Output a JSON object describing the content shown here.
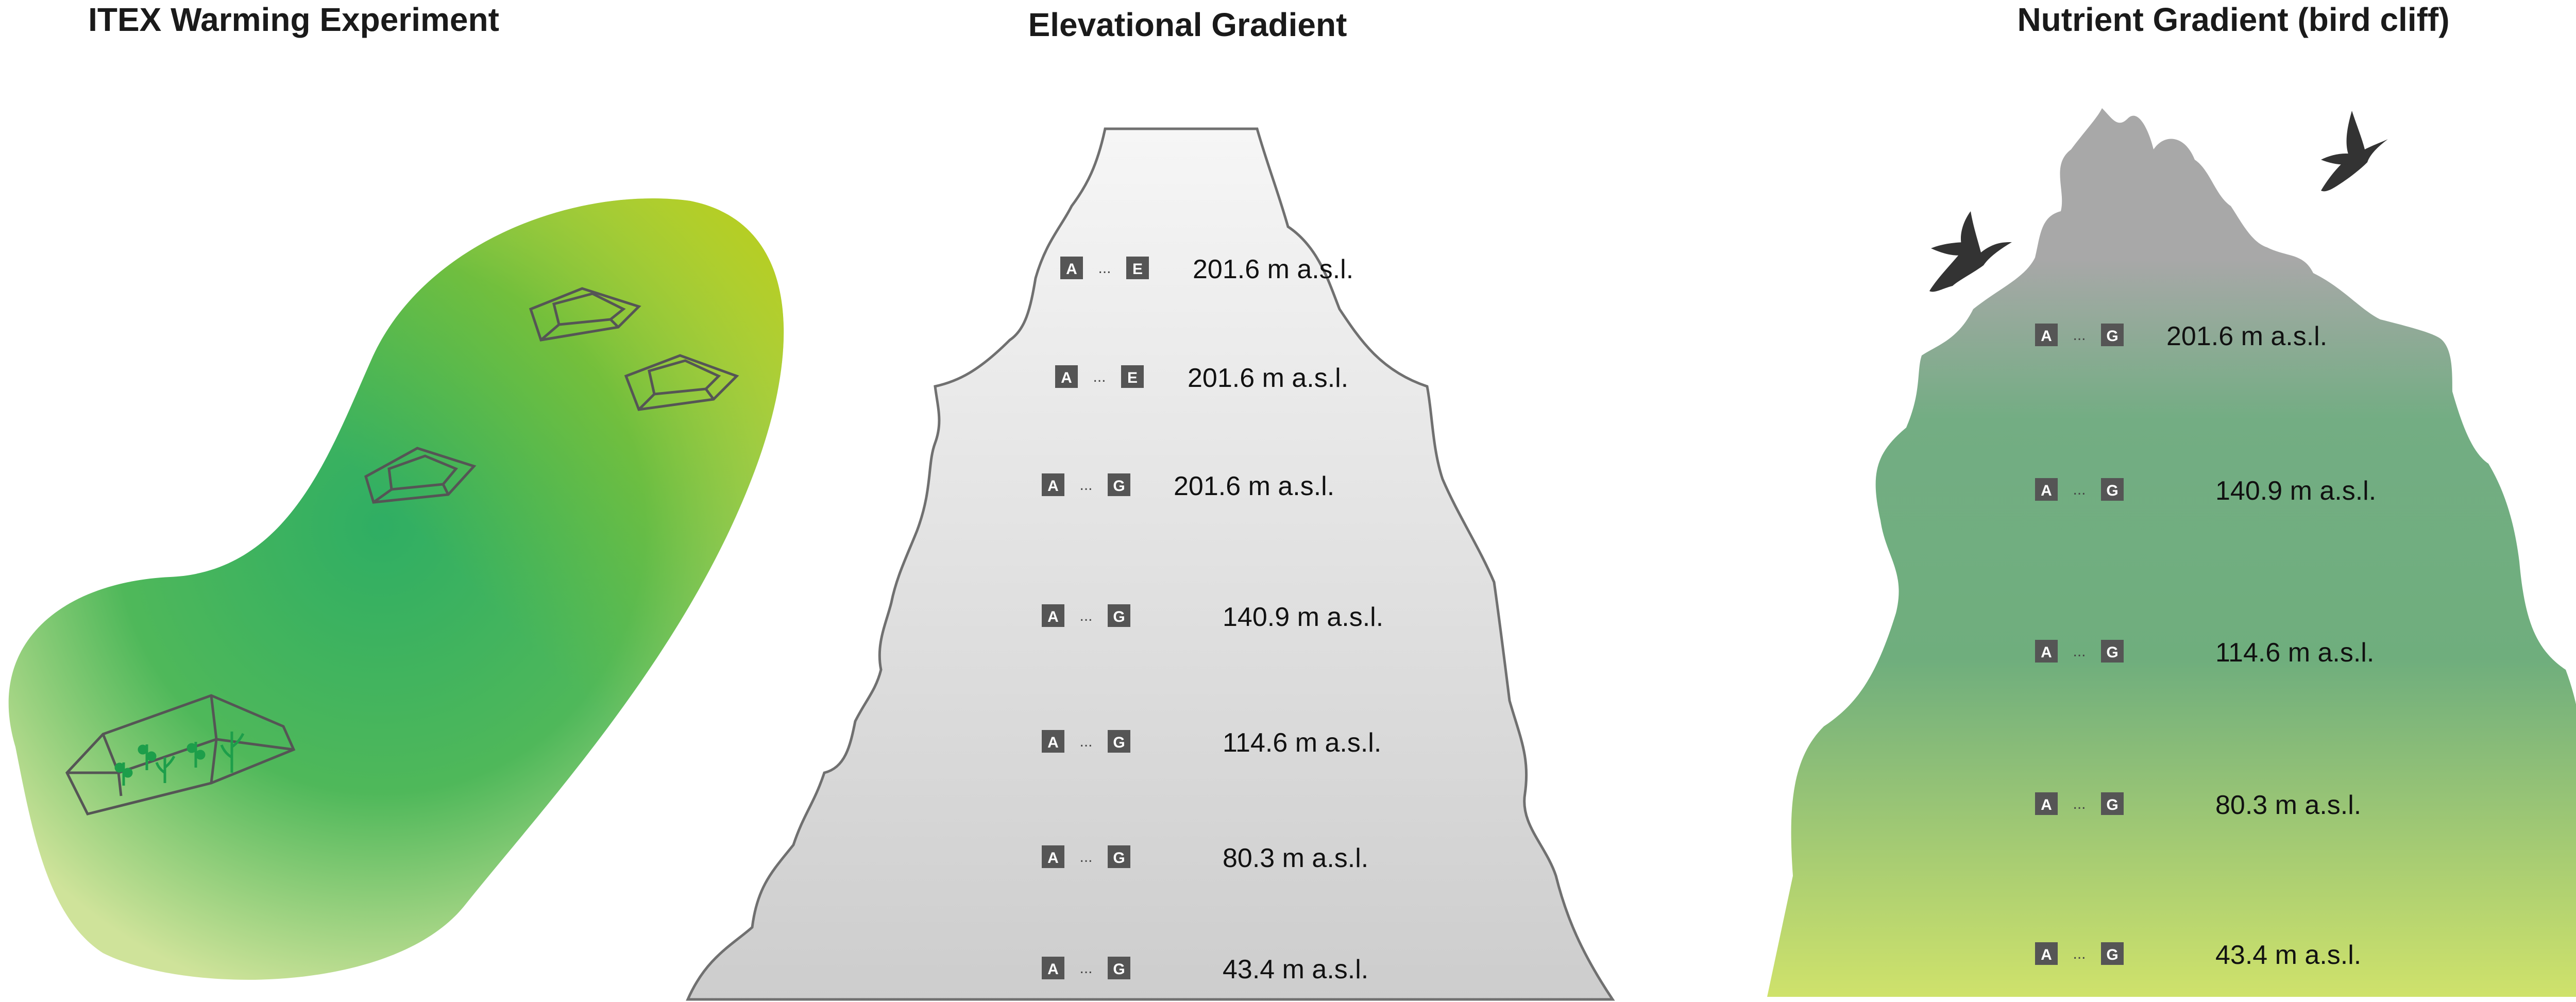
{
  "panels": {
    "itex": {
      "title": "ITEX Warming Experiment"
    },
    "elevational": {
      "title": "Elevational Gradient",
      "rows": [
        {
          "from": "A",
          "to": "E",
          "elevation": "201.6 m a.s.l."
        },
        {
          "from": "A",
          "to": "E",
          "elevation": "201.6 m a.s.l."
        },
        {
          "from": "A",
          "to": "G",
          "elevation": "201.6 m a.s.l."
        },
        {
          "from": "A",
          "to": "G",
          "elevation": "140.9 m a.s.l."
        },
        {
          "from": "A",
          "to": "G",
          "elevation": "114.6 m a.s.l."
        },
        {
          "from": "A",
          "to": "G",
          "elevation": "80.3 m a.s.l."
        },
        {
          "from": "A",
          "to": "G",
          "elevation": "43.4 m a.s.l."
        }
      ]
    },
    "nutrient": {
      "title": "Nutrient Gradient (bird cliff)",
      "rows": [
        {
          "from": "A",
          "to": "G",
          "elevation": "201.6 m a.s.l."
        },
        {
          "from": "A",
          "to": "G",
          "elevation": "140.9 m a.s.l."
        },
        {
          "from": "A",
          "to": "G",
          "elevation": "114.6 m a.s.l."
        },
        {
          "from": "A",
          "to": "G",
          "elevation": "80.3 m a.s.l."
        },
        {
          "from": "A",
          "to": "G",
          "elevation": "43.4 m a.s.l."
        }
      ]
    }
  },
  "ellipsis": "...",
  "colors": {
    "itex_light": "#cfe39a",
    "itex_mid": "#2fae63",
    "itex_yellow": "#a8c814",
    "mountain_top": "#f4f4f4",
    "mountain_bottom": "#cfcfcf",
    "cliff_top": "#a9a9a9",
    "cliff_mid": "#6aae7e",
    "cliff_bottom": "#cde06a",
    "badge": "#555555"
  }
}
